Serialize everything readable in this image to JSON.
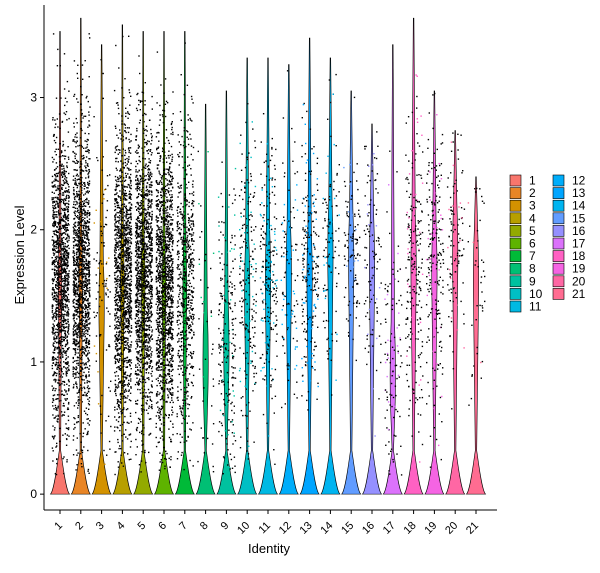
{
  "chart_data": {
    "type": "violin",
    "title": "",
    "xlabel": "Identity",
    "ylabel": "Expression Level",
    "ylim": [
      -0.12,
      3.7
    ],
    "y_ticks": [
      0,
      1,
      2,
      3
    ],
    "grid": false,
    "legend_placement": "right",
    "categories": [
      "1",
      "2",
      "3",
      "4",
      "5",
      "6",
      "7",
      "8",
      "9",
      "10",
      "11",
      "12",
      "13",
      "14",
      "15",
      "16",
      "17",
      "18",
      "19",
      "20",
      "21"
    ],
    "colors": [
      "#F8766D",
      "#E88526",
      "#D39200",
      "#B79F00",
      "#93AA00",
      "#5EB300",
      "#00BA38",
      "#00BF74",
      "#00C19F",
      "#00BFC4",
      "#00B9E3",
      "#00ADFA",
      "#00A5FF",
      "#00B4F0",
      "#619CFF",
      "#9590FF",
      "#DB72FB",
      "#FF61C3",
      "#F564E3",
      "#FF67A4",
      "#FF6C91"
    ],
    "series": [
      {
        "name": "1",
        "max": 3.5,
        "median": 1.6,
        "spread": 0.55,
        "density": "very-high"
      },
      {
        "name": "2",
        "max": 3.6,
        "median": 1.65,
        "spread": 0.55,
        "density": "very-high"
      },
      {
        "name": "3",
        "max": 3.4,
        "median": 1.5,
        "spread": 0.6,
        "density": "low"
      },
      {
        "name": "4",
        "max": 3.55,
        "median": 1.65,
        "spread": 0.55,
        "density": "very-high"
      },
      {
        "name": "5",
        "max": 3.5,
        "median": 1.65,
        "spread": 0.55,
        "density": "very-high"
      },
      {
        "name": "6",
        "max": 3.5,
        "median": 1.6,
        "spread": 0.55,
        "density": "very-high"
      },
      {
        "name": "7",
        "max": 3.5,
        "median": 1.6,
        "spread": 0.55,
        "density": "high"
      },
      {
        "name": "8",
        "max": 2.95,
        "median": 1.1,
        "spread": 0.6,
        "density": "very-low"
      },
      {
        "name": "9",
        "max": 3.05,
        "median": 1.2,
        "spread": 0.55,
        "density": "medium"
      },
      {
        "name": "10",
        "max": 3.3,
        "median": 1.6,
        "spread": 0.55,
        "density": "medium"
      },
      {
        "name": "11",
        "max": 3.3,
        "median": 1.7,
        "spread": 0.5,
        "density": "medium"
      },
      {
        "name": "12",
        "max": 3.25,
        "median": 1.75,
        "spread": 0.5,
        "density": "low"
      },
      {
        "name": "13",
        "max": 3.45,
        "median": 1.7,
        "spread": 0.5,
        "density": "medium"
      },
      {
        "name": "14",
        "max": 3.3,
        "median": 1.9,
        "spread": 0.45,
        "density": "low"
      },
      {
        "name": "15",
        "max": 3.05,
        "median": 1.85,
        "spread": 0.45,
        "density": "low"
      },
      {
        "name": "16",
        "max": 2.8,
        "median": 1.8,
        "spread": 0.45,
        "density": "low"
      },
      {
        "name": "17",
        "max": 3.4,
        "median": 1.0,
        "spread": 0.55,
        "density": "low"
      },
      {
        "name": "18",
        "max": 3.6,
        "median": 1.8,
        "spread": 0.55,
        "density": "medium"
      },
      {
        "name": "19",
        "max": 3.05,
        "median": 1.75,
        "spread": 0.55,
        "density": "medium"
      },
      {
        "name": "20",
        "max": 2.75,
        "median": 1.9,
        "spread": 0.4,
        "density": "low"
      },
      {
        "name": "21",
        "max": 2.4,
        "median": 1.7,
        "spread": 0.45,
        "density": "very-low"
      }
    ]
  }
}
